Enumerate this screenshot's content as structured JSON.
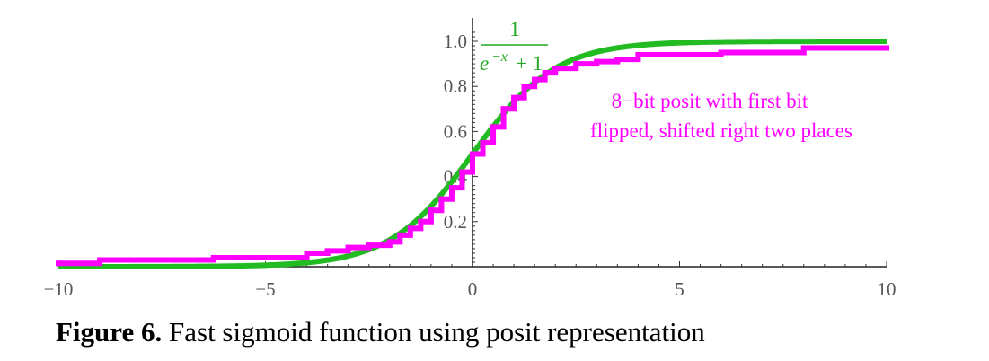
{
  "chart_data": {
    "type": "line",
    "xlim": [
      -10,
      10
    ],
    "ylim": [
      0,
      1.05
    ],
    "x_ticks": [
      -10,
      -5,
      0,
      5,
      10
    ],
    "x_tick_labels": [
      "−10",
      "−5",
      "0",
      "5",
      "10"
    ],
    "y_ticks": [
      0.2,
      0.4,
      0.6,
      0.8,
      1.0
    ],
    "y_tick_labels": [
      "0.2",
      "0.4",
      "0.6",
      "0.8",
      "1.0"
    ],
    "grid": false,
    "series": [
      {
        "name": "1/(e^-x + 1)",
        "color": "#22bb22",
        "style": "smooth",
        "x": [
          -10,
          -8,
          -6,
          -5,
          -4,
          -3,
          -2.5,
          -2,
          -1.5,
          -1,
          -0.5,
          0,
          0.5,
          1,
          1.5,
          2,
          2.5,
          3,
          4,
          5,
          6,
          8,
          10
        ],
        "y": [
          5e-05,
          0.0003,
          0.0025,
          0.0067,
          0.018,
          0.047,
          0.076,
          0.119,
          0.182,
          0.269,
          0.378,
          0.5,
          0.622,
          0.731,
          0.818,
          0.881,
          0.924,
          0.953,
          0.982,
          0.993,
          0.998,
          0.9997,
          1.0
        ]
      },
      {
        "name": "8−bit posit with first bit flipped, shifted right two places",
        "color": "#ff00ff",
        "style": "step",
        "x": [
          -10,
          -9,
          -6.25,
          -4,
          -3.5,
          -3,
          -2.5,
          -2,
          -1.75,
          -1.5,
          -1.25,
          -1,
          -0.75,
          -0.5,
          -0.25,
          0,
          0.25,
          0.5,
          0.75,
          1,
          1.25,
          1.5,
          1.75,
          2,
          2.5,
          3,
          3.5,
          4,
          6,
          8,
          10
        ],
        "y": [
          0.015,
          0.03,
          0.04,
          0.06,
          0.07,
          0.085,
          0.095,
          0.11,
          0.14,
          0.17,
          0.2,
          0.25,
          0.3,
          0.35,
          0.42,
          0.5,
          0.55,
          0.62,
          0.7,
          0.75,
          0.8,
          0.83,
          0.86,
          0.88,
          0.9,
          0.91,
          0.92,
          0.94,
          0.95,
          0.97,
          0.97
        ]
      }
    ]
  },
  "formula": {
    "numerator": "1",
    "den_e": "e",
    "den_exp": "−x",
    "den_rest": "+ 1"
  },
  "annotation": {
    "line1": "8−bit posit with first bit",
    "line2": "flipped, shifted right two places"
  },
  "caption": {
    "label": "Figure 6.",
    "text": "Fast sigmoid function using posit representation"
  }
}
